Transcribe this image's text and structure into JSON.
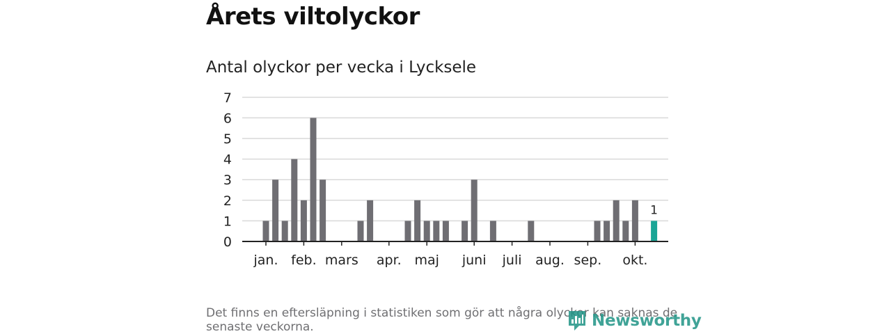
{
  "header": {
    "title": "Årets viltolyckor",
    "subtitle": "Antal olyckor per vecka i Lycksele"
  },
  "chart_data": {
    "type": "bar",
    "title": "Antal olyckor per vecka i Lycksele",
    "xlabel": "",
    "ylabel": "",
    "ylim": [
      0,
      7
    ],
    "yticks": [
      "0",
      "1",
      "2",
      "3",
      "4",
      "5",
      "6",
      "7"
    ],
    "weeks": [
      1,
      2,
      3,
      4,
      5,
      6,
      7,
      8,
      9,
      10,
      11,
      12,
      13,
      14,
      15,
      16,
      17,
      18,
      19,
      20,
      21,
      22,
      23,
      24,
      25,
      26,
      27,
      28,
      29,
      30,
      31,
      32,
      33,
      34,
      35,
      36,
      37,
      38,
      39,
      40,
      41,
      42
    ],
    "values": [
      1,
      3,
      1,
      4,
      2,
      6,
      3,
      0,
      0,
      0,
      1,
      2,
      0,
      0,
      0,
      1,
      2,
      1,
      1,
      1,
      0,
      1,
      3,
      0,
      1,
      0,
      0,
      0,
      1,
      0,
      0,
      0,
      0,
      0,
      0,
      1,
      1,
      2,
      1,
      2,
      0,
      1
    ],
    "current_week_value": 1,
    "current_week_label": "1",
    "month_labels": [
      "jan.",
      "feb.",
      "mars",
      "apr.",
      "maj",
      "juni",
      "juli",
      "aug.",
      "sep.",
      "okt."
    ],
    "grid": true
  },
  "colors": {
    "bar": "#6f6e73",
    "highlight": "#1aa596",
    "grid": "#d9d9d9",
    "axis": "#222222",
    "brand": "#1f9486"
  },
  "footnote": {
    "text": "Det finns en eftersläpning i statistiken som gör att några olyckor kan saknas de senaste veckorna."
  },
  "brand": {
    "name": "Newsworthy",
    "icon": "newsworthy-logo-icon"
  }
}
